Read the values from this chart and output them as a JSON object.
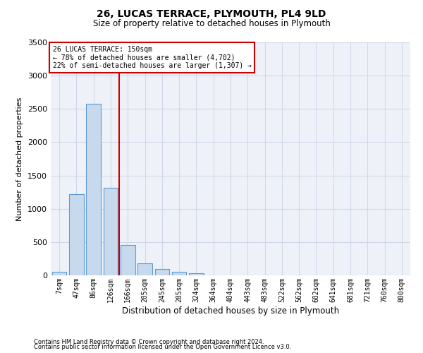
{
  "title": "26, LUCAS TERRACE, PLYMOUTH, PL4 9LD",
  "subtitle": "Size of property relative to detached houses in Plymouth",
  "xlabel": "Distribution of detached houses by size in Plymouth",
  "ylabel": "Number of detached properties",
  "annotation_line1": "26 LUCAS TERRACE: 150sqm",
  "annotation_line2": "← 78% of detached houses are smaller (4,702)",
  "annotation_line3": "22% of semi-detached houses are larger (1,307) →",
  "categories": [
    "7sqm",
    "47sqm",
    "86sqm",
    "126sqm",
    "166sqm",
    "205sqm",
    "245sqm",
    "285sqm",
    "324sqm",
    "364sqm",
    "404sqm",
    "443sqm",
    "483sqm",
    "522sqm",
    "562sqm",
    "602sqm",
    "641sqm",
    "681sqm",
    "721sqm",
    "760sqm",
    "800sqm"
  ],
  "bar_values": [
    50,
    1220,
    2580,
    1310,
    460,
    180,
    100,
    55,
    30,
    5,
    0,
    0,
    0,
    0,
    0,
    0,
    0,
    0,
    0,
    0,
    0
  ],
  "bar_color": "#c7d9ed",
  "bar_edge_color": "#5b9bd5",
  "grid_color": "#d0d8e8",
  "bg_color": "#eef2f8",
  "marker_color": "#cc0000",
  "box_color": "#cc0000",
  "ylim": [
    0,
    3500
  ],
  "yticks": [
    0,
    500,
    1000,
    1500,
    2000,
    2500,
    3000,
    3500
  ],
  "footer_line1": "Contains HM Land Registry data © Crown copyright and database right 2024.",
  "footer_line2": "Contains public sector information licensed under the Open Government Licence v3.0."
}
